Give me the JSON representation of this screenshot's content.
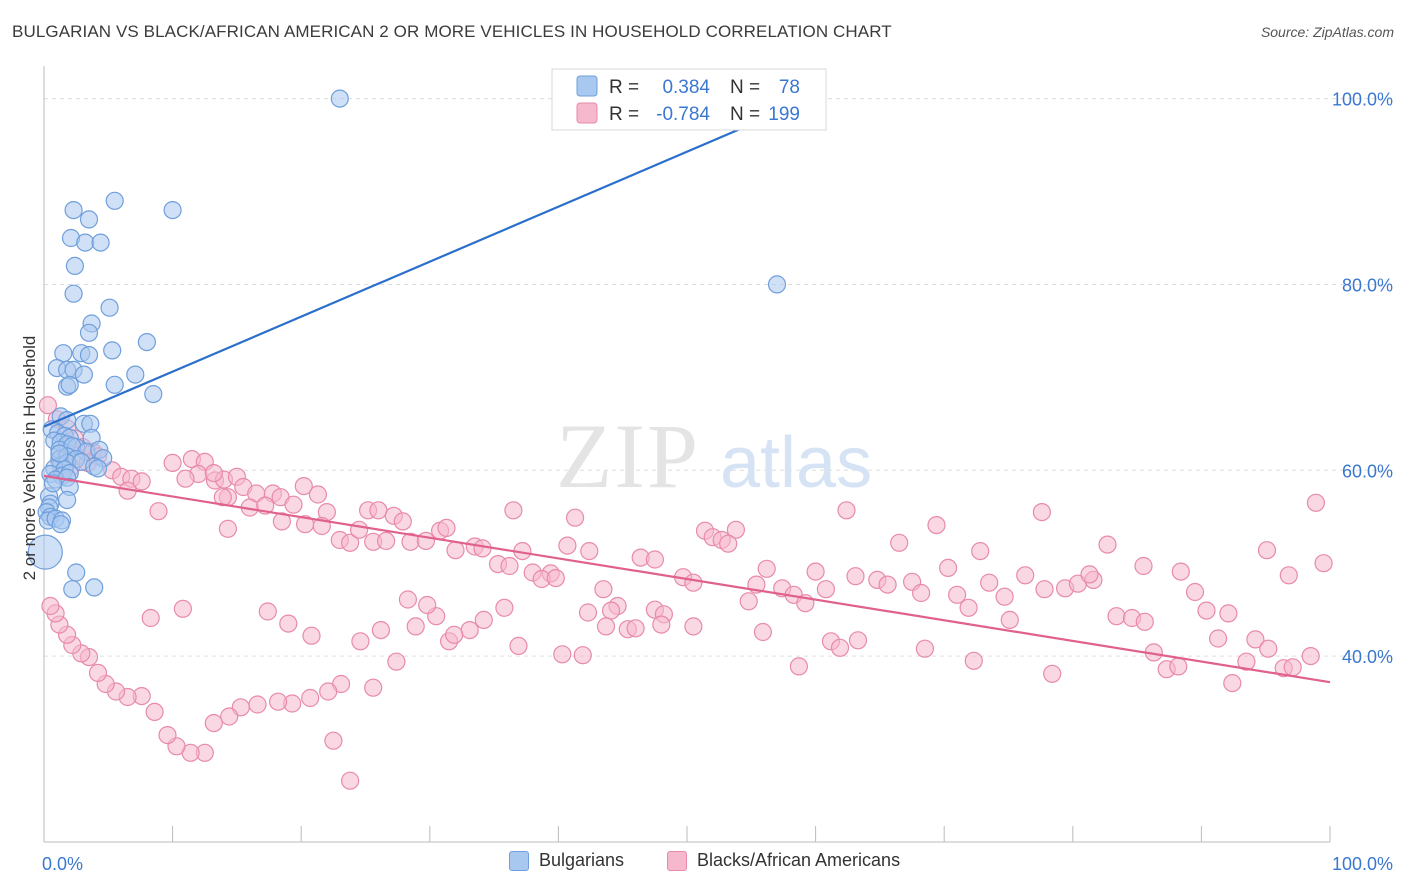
{
  "title": "BULGARIAN VS BLACK/AFRICAN AMERICAN 2 OR MORE VEHICLES IN HOUSEHOLD CORRELATION CHART",
  "source": "Source: ZipAtlas.com",
  "watermark": {
    "zip": "ZIP",
    "atlas": "atlas"
  },
  "colors": {
    "blue_fill": "#a9c8f0",
    "blue_stroke": "#6f9fdc",
    "blue_line": "#2a6fcb",
    "pink_fill": "#f6b8cc",
    "pink_stroke": "#e88aa9",
    "pink_line": "#e0608e",
    "value_text": "#3a78d0",
    "grid": "#dddddd"
  },
  "legend_top": [
    {
      "r_label": "R =",
      "r_value": "0.384",
      "n_label": "N =",
      "n_value": "78"
    },
    {
      "r_label": "R =",
      "r_value": "-0.784",
      "n_label": "N =",
      "n_value": "199"
    }
  ],
  "chart_data": {
    "type": "scatter",
    "title": "BULGARIAN VS BLACK/AFRICAN AMERICAN 2 OR MORE VEHICLES IN HOUSEHOLD CORRELATION CHART",
    "xlabel": "",
    "ylabel": "2 or more Vehicles in Household",
    "xlim": [
      0,
      100
    ],
    "ylim": [
      20,
      102
    ],
    "x_tick_labels": [
      "0.0%",
      "100.0%"
    ],
    "y_ticks": [
      40,
      60,
      80,
      100
    ],
    "y_tick_labels": [
      "40.0%",
      "60.0%",
      "80.0%",
      "100.0%"
    ],
    "grid": true,
    "legend_position": "top-center",
    "series": [
      {
        "name": "Bulgarians",
        "color": "#a9c8f0",
        "trend": {
          "x": [
            0,
            60
          ],
          "y": [
            64.7,
            100.2
          ]
        },
        "points": [
          [
            23,
            100
          ],
          [
            5.5,
            89
          ],
          [
            2.3,
            88
          ],
          [
            3.5,
            87
          ],
          [
            10,
            88
          ],
          [
            2.1,
            85
          ],
          [
            3.2,
            84.5
          ],
          [
            4.4,
            84.5
          ],
          [
            2.4,
            82
          ],
          [
            57,
            80
          ],
          [
            2.3,
            79
          ],
          [
            5.1,
            77.5
          ],
          [
            3.7,
            75.8
          ],
          [
            3.5,
            74.8
          ],
          [
            8,
            73.8
          ],
          [
            1.5,
            72.6
          ],
          [
            2.9,
            72.6
          ],
          [
            3.5,
            72.4
          ],
          [
            5.3,
            72.9
          ],
          [
            1,
            71
          ],
          [
            1.8,
            70.8
          ],
          [
            2.3,
            70.8
          ],
          [
            7.1,
            70.3
          ],
          [
            3.1,
            70.3
          ],
          [
            1.8,
            69
          ],
          [
            2,
            69.2
          ],
          [
            5.5,
            69.2
          ],
          [
            8.5,
            68.2
          ],
          [
            1.3,
            65.8
          ],
          [
            1.8,
            65.4
          ],
          [
            3.1,
            65
          ],
          [
            3.6,
            65
          ],
          [
            0.6,
            64.4
          ],
          [
            1.1,
            64
          ],
          [
            1.6,
            63.7
          ],
          [
            2,
            63.5
          ],
          [
            3.7,
            63.5
          ],
          [
            0.8,
            63.2
          ],
          [
            1.3,
            63
          ],
          [
            1.8,
            62.8
          ],
          [
            2.5,
            62.5
          ],
          [
            1.2,
            62.2
          ],
          [
            2.2,
            62.6
          ],
          [
            3.3,
            62
          ],
          [
            4.3,
            62.2
          ],
          [
            1.2,
            61.2
          ],
          [
            1.8,
            61.5
          ],
          [
            2.5,
            61.2
          ],
          [
            4.6,
            61.3
          ],
          [
            1.3,
            60.5
          ],
          [
            1.8,
            60.8
          ],
          [
            2.9,
            60.9
          ],
          [
            0.8,
            60.2
          ],
          [
            1.6,
            60.1
          ],
          [
            3.9,
            60.4
          ],
          [
            4.2,
            60.2
          ],
          [
            0.5,
            59.6
          ],
          [
            1.4,
            59.4
          ],
          [
            2,
            59.7
          ],
          [
            0.9,
            59
          ],
          [
            1.8,
            59.2
          ],
          [
            2,
            58.2
          ],
          [
            0.4,
            57.2
          ],
          [
            1.8,
            56.8
          ],
          [
            0.5,
            56.4
          ],
          [
            0.4,
            56
          ],
          [
            0.2,
            55.5
          ],
          [
            0.5,
            55
          ],
          [
            0.3,
            54.6
          ],
          [
            0.9,
            54.8
          ],
          [
            1.4,
            54.6
          ],
          [
            1.3,
            54.2
          ],
          [
            0.1,
            51.2
          ],
          [
            2.5,
            49
          ],
          [
            3.9,
            47.4
          ],
          [
            2.2,
            47.2
          ],
          [
            1.2,
            61.8
          ],
          [
            0.7,
            58.6
          ]
        ]
      },
      {
        "name": "Blacks/African Americans",
        "color": "#f6b8cc",
        "trend": {
          "x": [
            0,
            100
          ],
          "y": [
            59.4,
            37.2
          ]
        },
        "points": [
          [
            0.3,
            67
          ],
          [
            1,
            65.5
          ],
          [
            1.8,
            64.5
          ],
          [
            2.4,
            63.4
          ],
          [
            3,
            62.5
          ],
          [
            3.8,
            62
          ],
          [
            4.2,
            61.5
          ],
          [
            2.5,
            61.5
          ],
          [
            1.2,
            61
          ],
          [
            3.4,
            60.8
          ],
          [
            2.1,
            60.3
          ],
          [
            5.3,
            60
          ],
          [
            6,
            59.3
          ],
          [
            6.8,
            59.1
          ],
          [
            7.6,
            58.8
          ],
          [
            6.5,
            57.8
          ],
          [
            10,
            60.8
          ],
          [
            11.5,
            61.2
          ],
          [
            12.5,
            60.9
          ],
          [
            13.3,
            58.9
          ],
          [
            14,
            59
          ],
          [
            15,
            59.3
          ],
          [
            15.5,
            58.2
          ],
          [
            16.5,
            57.5
          ],
          [
            12,
            59.6
          ],
          [
            13.2,
            59.7
          ],
          [
            11,
            59.1
          ],
          [
            14.3,
            57.1
          ],
          [
            16,
            56
          ],
          [
            17.8,
            57.5
          ],
          [
            18.4,
            57.1
          ],
          [
            19.4,
            56.3
          ],
          [
            20.2,
            58.3
          ],
          [
            21.3,
            57.4
          ],
          [
            22,
            55.5
          ],
          [
            8.9,
            55.6
          ],
          [
            13.9,
            57.1
          ],
          [
            17.2,
            56.2
          ],
          [
            18.5,
            54.5
          ],
          [
            20.3,
            54.2
          ],
          [
            21.6,
            54
          ],
          [
            14.3,
            53.7
          ],
          [
            23,
            52.5
          ],
          [
            23.8,
            52.2
          ],
          [
            24.5,
            53.6
          ],
          [
            25.2,
            55.7
          ],
          [
            25.6,
            52.3
          ],
          [
            26,
            55.7
          ],
          [
            27.2,
            55.1
          ],
          [
            27.9,
            54.5
          ],
          [
            26.6,
            52.4
          ],
          [
            28.5,
            52.3
          ],
          [
            29.7,
            52.4
          ],
          [
            30.8,
            53.5
          ],
          [
            31.3,
            53.8
          ],
          [
            32,
            51.4
          ],
          [
            33.5,
            51.8
          ],
          [
            34.1,
            51.6
          ],
          [
            35.3,
            49.9
          ],
          [
            36.2,
            49.7
          ],
          [
            36.5,
            55.7
          ],
          [
            37.2,
            51.3
          ],
          [
            38,
            49
          ],
          [
            39.4,
            48.9
          ],
          [
            38.7,
            48.3
          ],
          [
            39.8,
            48.4
          ],
          [
            40.7,
            51.9
          ],
          [
            41.3,
            54.9
          ],
          [
            42.4,
            51.3
          ],
          [
            43.5,
            47.2
          ],
          [
            44.6,
            45.4
          ],
          [
            45.4,
            42.9
          ],
          [
            46.4,
            50.6
          ],
          [
            47.5,
            50.4
          ],
          [
            47.5,
            45
          ],
          [
            48.2,
            44.5
          ],
          [
            49.7,
            48.5
          ],
          [
            50.5,
            47.9
          ],
          [
            51.4,
            53.5
          ],
          [
            52,
            52.8
          ],
          [
            52.7,
            52.5
          ],
          [
            53.8,
            53.6
          ],
          [
            53.2,
            52.1
          ],
          [
            54.8,
            45.9
          ],
          [
            55.4,
            47.7
          ],
          [
            56.2,
            49.4
          ],
          [
            57.4,
            47.3
          ],
          [
            58.3,
            46.6
          ],
          [
            59.2,
            45.7
          ],
          [
            60,
            49.1
          ],
          [
            60.8,
            47.2
          ],
          [
            61.2,
            41.6
          ],
          [
            61.9,
            40.9
          ],
          [
            62.4,
            55.7
          ],
          [
            63.1,
            48.6
          ],
          [
            64.8,
            48.2
          ],
          [
            65.6,
            47.7
          ],
          [
            66.5,
            52.2
          ],
          [
            67.5,
            48
          ],
          [
            68.2,
            46.8
          ],
          [
            69.4,
            54.1
          ],
          [
            70.3,
            49.5
          ],
          [
            71,
            46.6
          ],
          [
            71.9,
            45.2
          ],
          [
            72.8,
            51.3
          ],
          [
            73.5,
            47.9
          ],
          [
            74.7,
            46.4
          ],
          [
            75.1,
            43.9
          ],
          [
            76.3,
            48.7
          ],
          [
            77.8,
            47.2
          ],
          [
            78.4,
            38.1
          ],
          [
            79.4,
            47.3
          ],
          [
            80.4,
            47.8
          ],
          [
            81.6,
            48.2
          ],
          [
            82.7,
            52
          ],
          [
            83.4,
            44.3
          ],
          [
            84.6,
            44.1
          ],
          [
            85.6,
            43.7
          ],
          [
            86.3,
            40.4
          ],
          [
            87.3,
            38.6
          ],
          [
            88.2,
            38.9
          ],
          [
            89.5,
            46.9
          ],
          [
            90.4,
            44.9
          ],
          [
            91.3,
            41.9
          ],
          [
            92.4,
            37.1
          ],
          [
            93.5,
            39.4
          ],
          [
            94.2,
            41.8
          ],
          [
            95.2,
            40.8
          ],
          [
            96.4,
            38.7
          ],
          [
            97.1,
            38.8
          ],
          [
            98.5,
            40
          ],
          [
            99.5,
            50
          ],
          [
            98.9,
            56.5
          ],
          [
            96.8,
            48.7
          ],
          [
            95.1,
            51.4
          ],
          [
            92.1,
            44.6
          ],
          [
            88.4,
            49.1
          ],
          [
            85.5,
            49.7
          ],
          [
            81.3,
            48.8
          ],
          [
            77.6,
            55.5
          ],
          [
            72.3,
            39.5
          ],
          [
            68.5,
            40.8
          ],
          [
            63.3,
            41.7
          ],
          [
            58.7,
            38.9
          ],
          [
            55.9,
            42.6
          ],
          [
            50.5,
            43.2
          ],
          [
            48,
            43.4
          ],
          [
            46,
            43
          ],
          [
            44.1,
            44.9
          ],
          [
            43.7,
            43.2
          ],
          [
            42.3,
            44.7
          ],
          [
            41.9,
            40.1
          ],
          [
            40.3,
            40.2
          ],
          [
            36.9,
            41.1
          ],
          [
            33.1,
            42.8
          ],
          [
            31.5,
            41.6
          ],
          [
            30.5,
            44.3
          ],
          [
            29.8,
            45.5
          ],
          [
            28.3,
            46.1
          ],
          [
            27.4,
            39.4
          ],
          [
            25.6,
            36.6
          ],
          [
            23.1,
            37
          ],
          [
            22.1,
            36.2
          ],
          [
            20.7,
            35.5
          ],
          [
            19.3,
            34.9
          ],
          [
            18.2,
            35.1
          ],
          [
            16.6,
            34.8
          ],
          [
            15.3,
            34.5
          ],
          [
            14.4,
            33.5
          ],
          [
            13.2,
            32.8
          ],
          [
            12.5,
            29.6
          ],
          [
            11.4,
            29.6
          ],
          [
            10.3,
            30.3
          ],
          [
            9.6,
            31.5
          ],
          [
            8.6,
            34
          ],
          [
            7.6,
            35.7
          ],
          [
            6.5,
            35.6
          ],
          [
            5.6,
            36.2
          ],
          [
            4.8,
            37
          ],
          [
            4.2,
            38.2
          ],
          [
            3.5,
            39.9
          ],
          [
            2.9,
            40.3
          ],
          [
            2.2,
            41.2
          ],
          [
            1.8,
            42.3
          ],
          [
            1.2,
            43.4
          ],
          [
            0.9,
            44.6
          ],
          [
            0.5,
            45.4
          ],
          [
            22.5,
            30.9
          ],
          [
            23.8,
            26.6
          ],
          [
            8.3,
            44.1
          ],
          [
            10.8,
            45.1
          ],
          [
            17.4,
            44.8
          ],
          [
            19,
            43.5
          ],
          [
            20.8,
            42.2
          ],
          [
            24.6,
            41.6
          ],
          [
            26.2,
            42.8
          ],
          [
            28.9,
            43.2
          ],
          [
            31.9,
            42.3
          ],
          [
            34.2,
            43.9
          ],
          [
            35.8,
            45.2
          ]
        ]
      }
    ]
  },
  "legend_bottom": [
    "Bulgarians",
    "Blacks/African Americans"
  ]
}
